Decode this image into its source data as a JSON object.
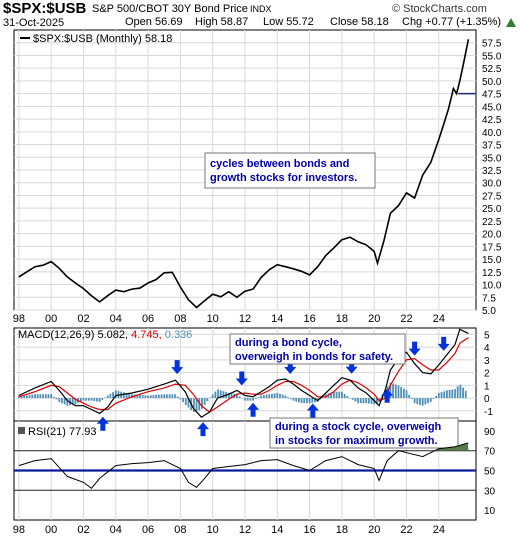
{
  "header": {
    "symbol": "$SPX:$USB",
    "description": "S&P 500/CBOT 30Y Bond Price",
    "exchange": "INDX",
    "date": "31-Oct-2025",
    "open": "Open 56.69",
    "high": "High 58.87",
    "low": "Low 55.72",
    "close": "Close 58.18",
    "chg": "Chg +0.77 (+1.35%)",
    "chg_arrow": "triangle-up-icon",
    "brand": "© StockCharts.com"
  },
  "colors": {
    "price_line": "#000000",
    "grid": "#d8d8d8",
    "macd_line": "#000000",
    "signal_line": "#dd0000",
    "histogram": "#4f8fb5",
    "rsi_band": "#0a1a9a",
    "rsi_overbought_fill": "#5a7a4a",
    "arrow": "#0033dd",
    "annotation_text": "#0000aa"
  },
  "chart_data": [
    {
      "type": "line",
      "panel": "price",
      "legend": "$SPX:$USB (Monthly) 58.18",
      "x": [
        1998,
        1998.5,
        1999,
        1999.5,
        2000,
        2000.5,
        2001,
        2001.5,
        2002,
        2002.5,
        2003,
        2003.5,
        2004,
        2004.5,
        2005,
        2005.5,
        2006,
        2006.5,
        2007,
        2007.5,
        2008,
        2008.5,
        2009,
        2009.5,
        2010,
        2010.5,
        2011,
        2011.5,
        2012,
        2012.5,
        2013,
        2013.5,
        2014,
        2014.5,
        2015,
        2015.5,
        2016,
        2016.5,
        2017,
        2017.5,
        2018,
        2018.5,
        2019,
        2019.5,
        2020,
        2020.2,
        2020.6,
        2021,
        2021.5,
        2022,
        2022.5,
        2023,
        2023.5,
        2024,
        2024.3,
        2024.6,
        2024.9,
        2025.1,
        2025.3,
        2025.5,
        2025.83
      ],
      "y": [
        11.5,
        12.5,
        13.5,
        13.8,
        14.5,
        13.2,
        11.5,
        10.3,
        9.2,
        7.8,
        6.6,
        7.8,
        8.9,
        8.6,
        9.1,
        9.3,
        10.3,
        11,
        12.3,
        12.4,
        9.5,
        7,
        5.5,
        6.8,
        8.1,
        7.6,
        8.6,
        7.5,
        8.7,
        9.1,
        11.4,
        12.9,
        13.9,
        13.5,
        13.1,
        12.6,
        11.9,
        13.5,
        15.7,
        17.2,
        18.8,
        19.3,
        18.4,
        17.8,
        16.5,
        14.2,
        18.6,
        24,
        25.5,
        28,
        27,
        31.5,
        34,
        38.5,
        41.5,
        44.5,
        48.5,
        47.5,
        50,
        53,
        58.18
      ],
      "ylim": [
        5,
        60
      ],
      "y_ticks": [
        "57.5",
        "55.0",
        "52.5",
        "50.0",
        "47.5",
        "45.0",
        "42.5",
        "40.0",
        "37.5",
        "35.0",
        "32.5",
        "30.0",
        "27.5",
        "25.0",
        "22.5",
        "20.0",
        "17.5",
        "15.0",
        "12.5",
        "10.0",
        "7.5",
        "5.0"
      ],
      "reference_level": 47.5,
      "x_labels": [
        "98",
        "00",
        "02",
        "04",
        "06",
        "08",
        "10",
        "12",
        "14",
        "16",
        "18",
        "20",
        "22",
        "24"
      ],
      "annotations": [
        "cycles between bonds and",
        "growth stocks for investors."
      ]
    },
    {
      "type": "line",
      "panel": "macd",
      "legend_name": "MACD(12,26,9)",
      "legend_values": [
        "5.082",
        "4.745",
        "0.336"
      ],
      "x": [
        1998,
        1999,
        2000,
        2000.5,
        2001,
        2001.5,
        2002,
        2002.5,
        2003,
        2003.5,
        2004,
        2005,
        2006,
        2007,
        2007.7,
        2008.3,
        2008.8,
        2009.3,
        2009.8,
        2010.3,
        2011,
        2011.5,
        2012,
        2012.5,
        2013,
        2013.5,
        2014,
        2014.5,
        2015,
        2015.5,
        2016,
        2016.5,
        2017,
        2017.5,
        2018,
        2018.5,
        2019,
        2019.5,
        2020,
        2020.3,
        2020.7,
        2021,
        2021.5,
        2022,
        2022.5,
        2023,
        2023.5,
        2024,
        2024.5,
        2025,
        2025.3,
        2025.83
      ],
      "series": [
        {
          "name": "MACD",
          "values": [
            0.2,
            0.8,
            1.3,
            0.6,
            -0.2,
            -0.6,
            -0.6,
            -0.9,
            -1.2,
            -0.7,
            0.2,
            0.4,
            0.7,
            1.1,
            1.4,
            0.5,
            -0.8,
            -1.5,
            -1.1,
            0,
            0.3,
            0.6,
            0.2,
            0.1,
            0.5,
            0.9,
            1.4,
            1.5,
            1.1,
            0.6,
            0.2,
            -0.2,
            0.4,
            1.0,
            1.6,
            1.4,
            0.8,
            0.4,
            -0.2,
            -0.6,
            0.7,
            2.2,
            3.1,
            3.6,
            2.7,
            2.0,
            1.9,
            2.6,
            3.4,
            4.2,
            5.4,
            5.08
          ]
        },
        {
          "name": "Signal",
          "values": [
            0.1,
            0.5,
            1.0,
            0.9,
            0.4,
            -0.1,
            -0.4,
            -0.7,
            -0.9,
            -0.9,
            -0.4,
            0.1,
            0.5,
            0.8,
            1.1,
            1.0,
            0.3,
            -0.6,
            -1.1,
            -0.7,
            -0.1,
            0.3,
            0.4,
            0.3,
            0.3,
            0.6,
            1.0,
            1.3,
            1.3,
            1.0,
            0.6,
            0.1,
            0.1,
            0.5,
            1.1,
            1.4,
            1.2,
            0.8,
            0.3,
            -0.2,
            0,
            1.0,
            2.1,
            3.0,
            3.1,
            2.6,
            2.2,
            2.2,
            2.8,
            3.5,
            4.3,
            4.745
          ]
        }
      ],
      "ylim": [
        -1.8,
        5.5
      ],
      "y_ticks": [
        "5",
        "4",
        "3",
        "2",
        "1",
        "0",
        "-1"
      ],
      "arrows_up": [
        2003.2,
        2009.4,
        2012.5,
        2016.2,
        2020.8
      ],
      "arrows_down": [
        2007.8,
        2011.8,
        2014.8,
        2018.6,
        2022.5,
        2024.3
      ],
      "annotations": [
        [
          "during a bond cycle,",
          "overweigh in bonds for safety."
        ],
        [
          "during a stock cycle, overweigh",
          "in stocks for maximum growth."
        ]
      ]
    },
    {
      "type": "line",
      "panel": "rsi",
      "legend_name": "RSI(21)",
      "legend_value": "77.93",
      "x": [
        1998,
        1999,
        2000,
        2001,
        2002,
        2002.5,
        2003,
        2004,
        2005,
        2006,
        2007,
        2008,
        2008.5,
        2009,
        2009.5,
        2010,
        2011,
        2012,
        2013,
        2014,
        2015,
        2016,
        2017,
        2018,
        2019,
        2020,
        2020.3,
        2020.8,
        2021.5,
        2022,
        2023,
        2024,
        2024.5,
        2025,
        2025.83
      ],
      "y": [
        55,
        60,
        62,
        44,
        38,
        32,
        42,
        55,
        57,
        58,
        60,
        52,
        38,
        33,
        42,
        52,
        54,
        56,
        60,
        61,
        55,
        50,
        60,
        64,
        56,
        52,
        40,
        60,
        70,
        68,
        64,
        72,
        73,
        74,
        77.93
      ],
      "ylim": [
        0,
        100
      ],
      "y_ticks": [
        "90",
        "70",
        "50",
        "30",
        "10"
      ],
      "bands": [
        70,
        50,
        30
      ],
      "x_labels": [
        "98",
        "00",
        "02",
        "04",
        "06",
        "08",
        "10",
        "12",
        "14",
        "16",
        "18",
        "20",
        "22",
        "24"
      ]
    }
  ]
}
